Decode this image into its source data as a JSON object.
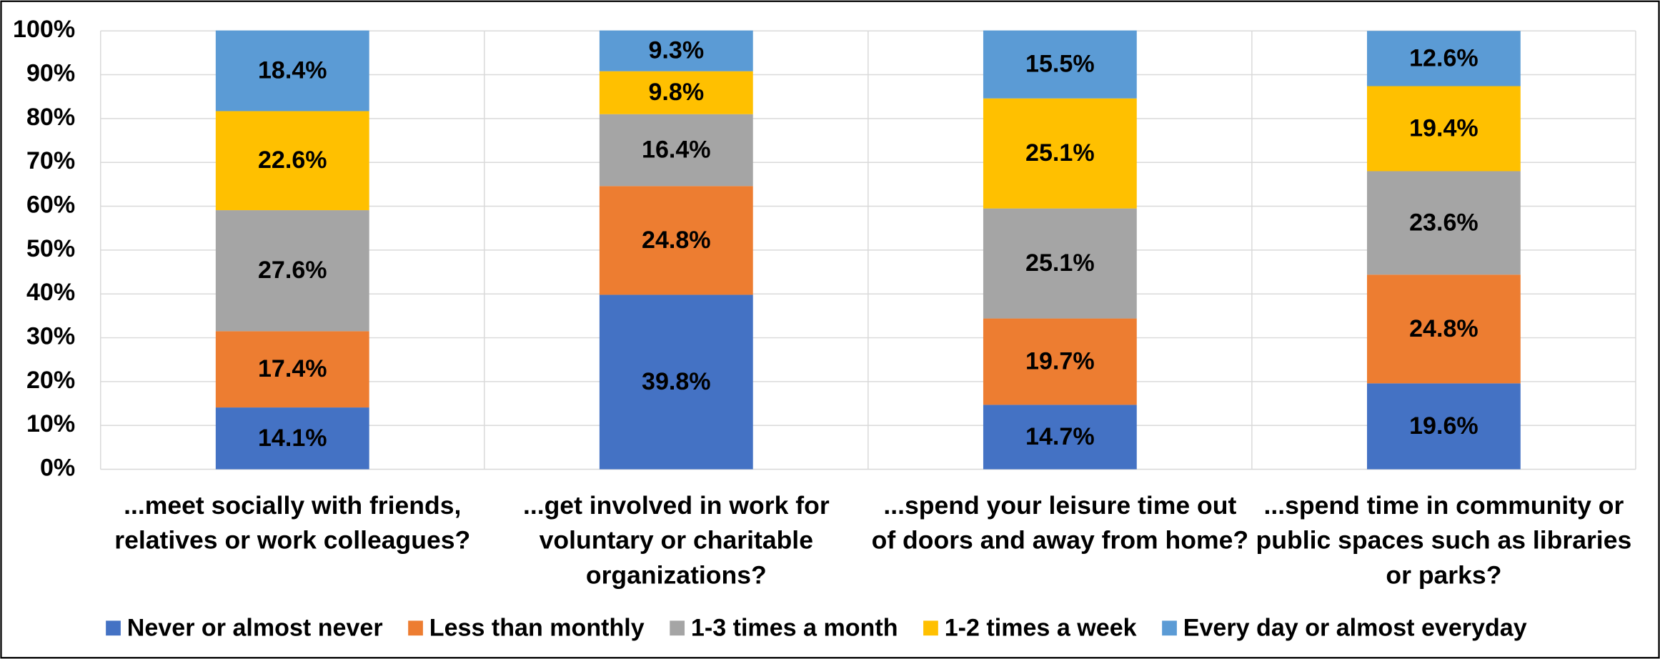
{
  "chart_data": {
    "type": "stacked_bar",
    "categories": [
      "...meet socially with friends, relatives or work colleagues?",
      "...get involved in work for voluntary or charitable organizations?",
      "...spend your leisure time out of doors and away from home?",
      "...spend time in community or public spaces such as libraries or parks?"
    ],
    "series": [
      {
        "name": "Never or almost never",
        "color": "#4472c4",
        "values": [
          14.1,
          39.8,
          14.7,
          19.6
        ],
        "value_labels": [
          "14.1%",
          "39.8%",
          "14.7%",
          "19.6%"
        ]
      },
      {
        "name": "Less than monthly",
        "color": "#ed7d31",
        "values": [
          17.4,
          24.8,
          19.7,
          24.8
        ],
        "value_labels": [
          "17.4%",
          "24.8%",
          "19.7%",
          "24.8%"
        ]
      },
      {
        "name": "1-3 times a month",
        "color": "#a5a5a5",
        "values": [
          27.6,
          16.4,
          25.1,
          23.6
        ],
        "value_labels": [
          "27.6%",
          "16.4%",
          "25.1%",
          "23.6%"
        ]
      },
      {
        "name": "1-2 times a week",
        "color": "#ffc000",
        "values": [
          22.6,
          9.8,
          25.1,
          19.4
        ],
        "value_labels": [
          "22.6%",
          "9.8%",
          "25.1%",
          "19.4%"
        ]
      },
      {
        "name": "Every day or almost everyday",
        "color": "#5b9bd5",
        "values": [
          18.4,
          9.3,
          15.5,
          12.6
        ],
        "value_labels": [
          "18.4%",
          "9.3%",
          "15.5%",
          "12.6%"
        ]
      }
    ],
    "ylim": [
      0,
      100
    ],
    "yticks": [
      {
        "value": 0,
        "label": "0%"
      },
      {
        "value": 10,
        "label": "10%"
      },
      {
        "value": 20,
        "label": "20%"
      },
      {
        "value": 30,
        "label": "30%"
      },
      {
        "value": 40,
        "label": "40%"
      },
      {
        "value": 50,
        "label": "50%"
      },
      {
        "value": 60,
        "label": "60%"
      },
      {
        "value": 70,
        "label": "70%"
      },
      {
        "value": 80,
        "label": "80%"
      },
      {
        "value": 90,
        "label": "90%"
      },
      {
        "value": 100,
        "label": "100%"
      }
    ],
    "grid": true,
    "legend": "bottom"
  }
}
